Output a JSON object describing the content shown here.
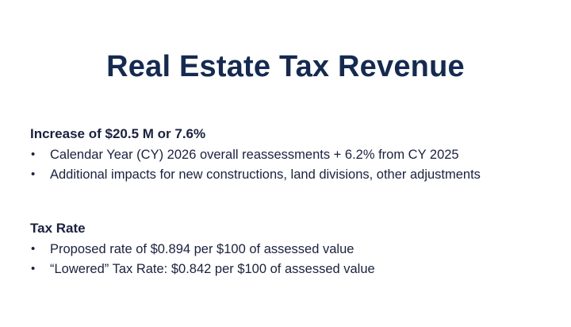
{
  "title": "Real Estate Tax Revenue",
  "sections": [
    {
      "heading": "Increase of $20.5 M or 7.6%",
      "bullets": [
        "Calendar Year (CY) 2026 overall reassessments + 6.2% from CY 2025",
        "Additional impacts for new constructions, land divisions, other adjustments"
      ]
    },
    {
      "heading": "Tax Rate",
      "bullets": [
        "Proposed rate of $0.894 per $100 of assessed value",
        "“Lowered” Tax Rate: $0.842 per $100 of assessed value"
      ]
    }
  ],
  "bullet_glyph": "•",
  "colors": {
    "title": "#152a52",
    "text": "#1a2140",
    "background": "#ffffff"
  }
}
